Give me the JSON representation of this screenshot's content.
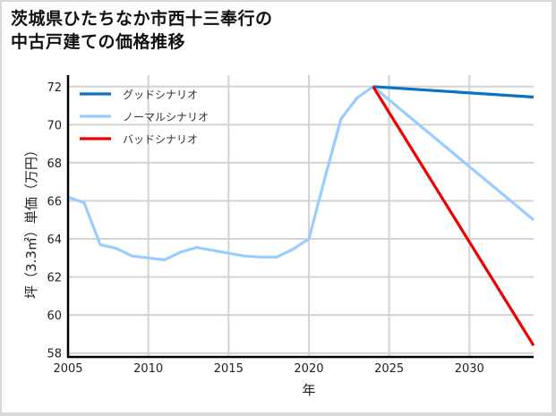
{
  "title_line1": "茨城県ひたちなか市西十三奉行の",
  "title_line2": "中古戸建ての価格推移",
  "chart_data": {
    "type": "line",
    "title": "茨城県ひたちなか市西十三奉行の中古戸建ての価格推移",
    "xlabel": "年",
    "ylabel": "坪（3.3㎡）単価（万円）",
    "xlim": [
      2005,
      2034
    ],
    "ylim": [
      57.8,
      72.6
    ],
    "x_ticks": [
      2005,
      2010,
      2015,
      2020,
      2025,
      2030
    ],
    "y_ticks": [
      58,
      60,
      62,
      64,
      66,
      68,
      70,
      72
    ],
    "grid": true,
    "legend_position": "upper left",
    "series": [
      {
        "name": "グッドシナリオ",
        "color": "#0a72c2",
        "x": [
          2024,
          2034
        ],
        "values": [
          72.0,
          71.45
        ]
      },
      {
        "name": "ノーマルシナリオ",
        "color": "#99ccff",
        "x": [
          2005,
          2006,
          2007,
          2008,
          2009,
          2010,
          2011,
          2012,
          2013,
          2014,
          2015,
          2016,
          2017,
          2018,
          2019,
          2020,
          2021,
          2022,
          2023,
          2024,
          2034
        ],
        "values": [
          66.2,
          65.9,
          63.7,
          63.5,
          63.1,
          63.0,
          62.9,
          63.3,
          63.55,
          63.4,
          63.25,
          63.1,
          63.05,
          63.05,
          63.45,
          64.0,
          67.2,
          70.3,
          71.4,
          72.0,
          65.0
        ]
      },
      {
        "name": "バッドシナリオ",
        "color": "#ee0000",
        "x": [
          2024,
          2034
        ],
        "values": [
          72.0,
          58.4
        ]
      }
    ]
  }
}
